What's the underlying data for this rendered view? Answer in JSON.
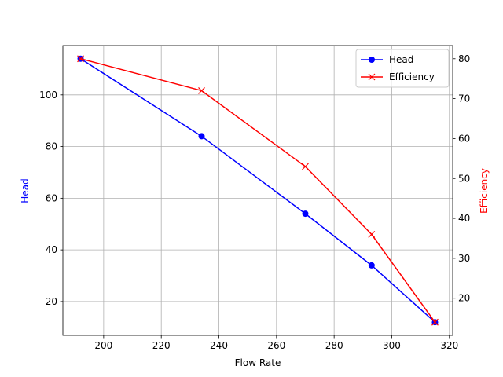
{
  "chart_data": {
    "type": "line",
    "x_label": "Flow Rate",
    "y_label": "Head",
    "y2_label": "Efficiency",
    "x": [
      192,
      234,
      270,
      293,
      315
    ],
    "series": [
      {
        "name": "Head",
        "color": "#0000ff",
        "marker": "o",
        "values": [
          114,
          84,
          54,
          34,
          12
        ]
      },
      {
        "name": "Efficiency",
        "color": "#ff0000",
        "marker": "x",
        "axis": "y2",
        "values": [
          80,
          72,
          53,
          36,
          14
        ]
      }
    ],
    "xlim": [
      185.85,
      321.15
    ],
    "xticks": [
      200,
      220,
      240,
      260,
      280,
      300,
      320
    ],
    "ylim": [
      6.9,
      119.1
    ],
    "yticks": [
      20,
      40,
      60,
      80,
      100
    ],
    "y2lim": [
      10.7,
      83.3
    ],
    "y2ticks": [
      20,
      30,
      40,
      50,
      60,
      70,
      80
    ],
    "grid": true,
    "legend": "upper right"
  }
}
